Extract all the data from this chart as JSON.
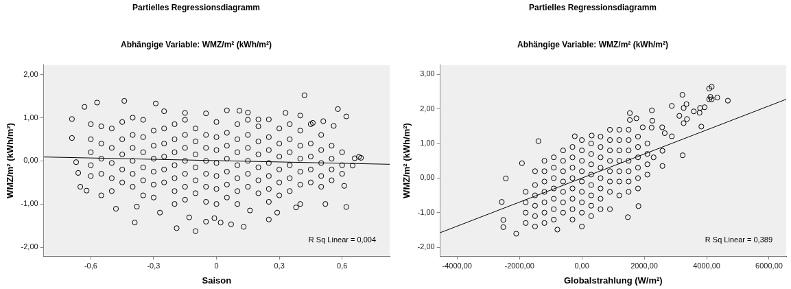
{
  "chart_data": [
    {
      "type": "scatter",
      "title": "Partielles Regressionsdiagramm",
      "subtitle": "Abhängige Variable: WMZ/m² (kWh/m²)",
      "xlabel": "Saison",
      "ylabel": "WMZ/m² (kWh/m²)",
      "xlim": [
        -0.825,
        0.827
      ],
      "ylim": [
        -2.21,
        2.22
      ],
      "xticks": [
        {
          "value": -0.6,
          "label": "-0,6"
        },
        {
          "value": -0.3,
          "label": "-0,3"
        },
        0,
        {
          "value": 0.3,
          "label": "0,3"
        },
        {
          "value": 0.6,
          "label": "0,6"
        }
      ],
      "yticks": [
        {
          "value": -2,
          "label": "-2,00"
        },
        {
          "value": -1,
          "label": "-1,00"
        },
        {
          "value": 0,
          "label": "0,00"
        },
        {
          "value": 1,
          "label": "1,00"
        },
        {
          "value": 2,
          "label": "2,00"
        }
      ],
      "grid": false,
      "legend": false,
      "annotations": [
        "R Sq Linear = 0,004"
      ],
      "series": [
        {
          "marker": "circle",
          "color": "#000000",
          "x": [
            -0.69,
            -0.69,
            -0.67,
            -0.66,
            -0.63,
            -0.57,
            -0.65,
            -0.62,
            -0.48,
            -0.39,
            -0.38,
            -0.29,
            -0.44,
            -0.27,
            -0.19,
            -0.13,
            -0.1,
            -0.05,
            -0.01,
            0.02,
            0.07,
            0.13,
            0.16,
            0.25,
            0.29,
            0.42,
            0.38,
            0.4,
            0.52,
            0.62,
            0.61,
            0.58,
            0.62,
            0.56,
            0.65,
            0.68,
            0.69,
            0.66,
            0.05,
            0.15,
            0.11,
            0.33,
            -0.15,
            0.2,
            0.25,
            0.4,
            0.51,
            0.46,
            -0.6,
            -0.6,
            -0.6,
            -0.6,
            -0.6,
            -0.55,
            -0.55,
            -0.55,
            -0.55,
            -0.55,
            -0.5,
            -0.5,
            -0.5,
            -0.5,
            -0.5,
            -0.45,
            -0.45,
            -0.45,
            -0.45,
            -0.45,
            -0.4,
            -0.4,
            -0.4,
            -0.4,
            -0.4,
            -0.4,
            -0.35,
            -0.35,
            -0.35,
            -0.35,
            -0.35,
            -0.35,
            -0.3,
            -0.3,
            -0.3,
            -0.3,
            -0.3,
            -0.3,
            -0.25,
            -0.25,
            -0.25,
            -0.25,
            -0.25,
            -0.25,
            -0.2,
            -0.2,
            -0.2,
            -0.2,
            -0.2,
            -0.2,
            -0.2,
            -0.15,
            -0.15,
            -0.15,
            -0.15,
            -0.15,
            -0.15,
            -0.15,
            -0.1,
            -0.1,
            -0.1,
            -0.1,
            -0.1,
            -0.1,
            -0.05,
            -0.05,
            -0.05,
            -0.05,
            -0.05,
            -0.05,
            -0.05,
            0,
            0,
            0,
            0,
            0,
            0,
            0,
            0.05,
            0.05,
            0.05,
            0.05,
            0.05,
            0.05,
            0.1,
            0.1,
            0.1,
            0.1,
            0.1,
            0.1,
            0.1,
            0.15,
            0.15,
            0.15,
            0.15,
            0.15,
            0.15,
            0.2,
            0.2,
            0.2,
            0.2,
            0.2,
            0.2,
            0.25,
            0.25,
            0.25,
            0.25,
            0.25,
            0.25,
            0.3,
            0.3,
            0.3,
            0.3,
            0.3,
            0.3,
            0.35,
            0.35,
            0.35,
            0.35,
            0.35,
            0.35,
            0.4,
            0.4,
            0.4,
            0.4,
            0.4,
            0.45,
            0.45,
            0.45,
            0.45,
            0.45,
            0.5,
            0.5,
            0.5,
            0.5,
            0.5,
            0.55,
            0.55,
            0.55,
            0.55,
            0.6,
            0.6,
            0.6
          ],
          "values": [
            0.97,
            0.53,
            -0.03,
            -0.28,
            1.25,
            1.35,
            -0.6,
            -0.69,
            -1.11,
            -1.43,
            -1.06,
            1.33,
            1.39,
            -1.2,
            -1.56,
            -1.31,
            -1.63,
            -1.41,
            -1.33,
            -1.43,
            -1.47,
            -1.53,
            -1.15,
            -1.36,
            -1.2,
            1.52,
            -1.08,
            -1,
            -1,
            -1.07,
            -0.58,
            1.2,
            1.03,
            0.81,
            -0.11,
            0.09,
            0.07,
            0.06,
            1.17,
            1.12,
            1.16,
            1.11,
            1.11,
            0.96,
            0.96,
            1.05,
            0.92,
            0.88,
            0.85,
            0.5,
            0.2,
            -0.1,
            -0.35,
            0.8,
            0.4,
            0.05,
            -0.3,
            -0.8,
            0.75,
            0.3,
            -0.05,
            -0.4,
            -0.7,
            0.9,
            0.5,
            0.15,
            -0.2,
            -0.5,
            1.0,
            0.6,
            0.3,
            0.0,
            -0.3,
            -0.6,
            0.95,
            0.55,
            0.2,
            -0.15,
            -0.45,
            -0.8,
            0.7,
            0.35,
            0.05,
            -0.25,
            -0.55,
            -0.85,
            1.15,
            0.75,
            0.4,
            0.1,
            -0.2,
            -0.5,
            0.85,
            0.5,
            0.2,
            -0.1,
            -0.4,
            -0.7,
            -1.0,
            0.95,
            0.6,
            0.3,
            0.0,
            -0.3,
            -0.6,
            -0.9,
            0.75,
            0.45,
            0.15,
            -0.15,
            -0.45,
            -0.75,
            1.1,
            0.6,
            0.3,
            0.0,
            -0.3,
            -0.6,
            -0.95,
            0.9,
            0.55,
            0.25,
            -0.05,
            -0.35,
            -0.65,
            -1.0,
            0.65,
            0.35,
            0.05,
            -0.25,
            -0.55,
            -0.85,
            0.85,
            0.5,
            0.2,
            -0.1,
            -0.4,
            -0.7,
            -1.0,
            0.95,
            0.6,
            0.3,
            0.0,
            -0.3,
            -0.6,
            0.8,
            0.45,
            0.15,
            -0.15,
            -0.45,
            -0.75,
            0.55,
            0.25,
            -0.05,
            -0.35,
            -0.65,
            -0.95,
            0.75,
            0.4,
            0.1,
            -0.2,
            -0.5,
            -0.8,
            0.85,
            0.5,
            0.2,
            -0.1,
            -0.4,
            -0.7,
            0.7,
            0.35,
            0.05,
            -0.25,
            -0.55,
            0.85,
            0.4,
            0.1,
            -0.2,
            -0.5,
            0.6,
            0.25,
            -0.05,
            -0.35,
            -0.6,
            0.35,
            0.05,
            -0.2,
            -0.45,
            0.2,
            -0.1,
            -0.3
          ]
        },
        {
          "type": "line",
          "color": "#000000",
          "x": [
            -0.825,
            0.827
          ],
          "values": [
            0.09,
            -0.08
          ]
        }
      ]
    },
    {
      "type": "scatter",
      "title": "Partielles Regressionsdiagramm",
      "subtitle": "Abhängige Variable: WMZ/m² (kWh/m²)",
      "xlabel": "Globalstrahlung (W/m²)",
      "ylabel": "WMZ/m² (kWh/m²)",
      "xlim": [
        -4540,
        6550
      ],
      "ylim": [
        -2.26,
        3.27
      ],
      "xticks": [
        {
          "value": -4000,
          "label": "-4000,00"
        },
        {
          "value": -2000,
          "label": "-2000,00"
        },
        {
          "value": 0,
          "label": "0,00"
        },
        {
          "value": 2000,
          "label": "2000,00"
        },
        {
          "value": 4000,
          "label": "4000,00"
        },
        {
          "value": 6000,
          "label": "6000,00"
        }
      ],
      "yticks": [
        {
          "value": -2,
          "label": "-2,00"
        },
        {
          "value": -1,
          "label": "-1,00"
        },
        {
          "value": 0,
          "label": "0,00"
        },
        {
          "value": 1,
          "label": "1,00"
        },
        {
          "value": 2,
          "label": "2,00"
        },
        {
          "value": 3,
          "label": "3,00"
        }
      ],
      "grid": false,
      "legend": false,
      "annotations": [
        "R Sq Linear = 0,389"
      ],
      "series": [
        {
          "marker": "circle",
          "color": "#000000",
          "x": [
            -2567,
            -2437,
            -2518,
            -2518,
            -2105,
            -1919,
            -1393,
            -785,
            -227,
            316,
            1474,
            1538,
            1538,
            1749,
            1951,
            1814,
            2243,
            2259,
            2235,
            2575,
            2583,
            2583,
            2656,
            2883,
            2883,
            3125,
            3223,
            3231,
            3263,
            3263,
            3352,
            3368,
            3587,
            3773,
            3789,
            3830,
            3935,
            4081,
            4162,
            4121,
            4081,
            4162,
            4340,
            4680,
            -1800,
            -1800,
            -1800,
            -1800,
            -1500,
            -1500,
            -1500,
            -1500,
            -1500,
            -1500,
            -1200,
            -1200,
            -1200,
            -1200,
            -1200,
            -1200,
            -1200,
            -900,
            -900,
            -900,
            -900,
            -900,
            -900,
            -900,
            -600,
            -600,
            -600,
            -600,
            -600,
            -600,
            -600,
            -300,
            -300,
            -300,
            -300,
            -300,
            -300,
            -300,
            -300,
            0,
            0,
            0,
            0,
            0,
            0,
            0,
            0,
            0,
            300,
            300,
            300,
            300,
            300,
            300,
            300,
            300,
            600,
            600,
            600,
            600,
            600,
            600,
            600,
            600,
            900,
            900,
            900,
            900,
            900,
            900,
            900,
            900,
            1200,
            1200,
            1200,
            1200,
            1200,
            1200,
            1200,
            1500,
            1500,
            1500,
            1500,
            1500,
            1500,
            1500,
            1800,
            1800,
            1800,
            1800,
            1800,
            1800,
            2100,
            2100,
            2100,
            2100,
            2300
          ],
          "values": [
            -0.69,
            -0.01,
            -1.21,
            -1.42,
            -1.61,
            0.43,
            1.07,
            -1.49,
            1.21,
            1.23,
            -1.13,
            1.88,
            1.68,
            1.73,
            1.47,
            -0.81,
            1.96,
            1.66,
            1.46,
            1.47,
            0.79,
            0.35,
            1.3,
            2.09,
            1.21,
            1.8,
            2.41,
            0.66,
            2.03,
            1.59,
            2.14,
            1.71,
            1.93,
            1.89,
            2.03,
            1.49,
            2.05,
            2.59,
            2.64,
            2.35,
            2.28,
            2.28,
            2.33,
            2.24,
            -0.4,
            -0.7,
            -1.0,
            -1.3,
            0.2,
            -0.2,
            -0.5,
            -0.8,
            -1.1,
            -1.4,
            0.5,
            0.2,
            -0.1,
            -0.4,
            -0.7,
            -1.0,
            -1.3,
            0.6,
            0.3,
            0.0,
            -0.3,
            -0.6,
            -0.9,
            -1.2,
            0.8,
            0.5,
            0.2,
            -0.1,
            -0.4,
            -0.7,
            -1.0,
            0.9,
            0.6,
            0.3,
            0.0,
            -0.3,
            -0.6,
            -0.9,
            -1.2,
            1.1,
            0.8,
            0.5,
            0.2,
            -0.1,
            -0.4,
            -0.7,
            -1.0,
            -1.4,
            1.0,
            0.7,
            0.4,
            0.1,
            -0.2,
            -0.5,
            -0.8,
            -1.1,
            1.2,
            0.9,
            0.6,
            0.3,
            0.0,
            -0.3,
            -0.6,
            -0.9,
            1.4,
            1.1,
            0.8,
            0.5,
            0.2,
            -0.1,
            -0.4,
            -0.9,
            1.4,
            1.1,
            0.8,
            0.5,
            0.2,
            -0.1,
            -0.5,
            1.4,
            1.1,
            0.8,
            0.5,
            0.2,
            -0.1,
            -0.4,
            1.2,
            0.9,
            0.6,
            0.3,
            0.0,
            -0.3,
            1.0,
            0.7,
            0.4,
            0.1,
            0.6
          ]
        },
        {
          "type": "line",
          "color": "#000000",
          "x": [
            -4540,
            6550
          ],
          "values": [
            -1.58,
            2.28
          ]
        }
      ]
    }
  ]
}
